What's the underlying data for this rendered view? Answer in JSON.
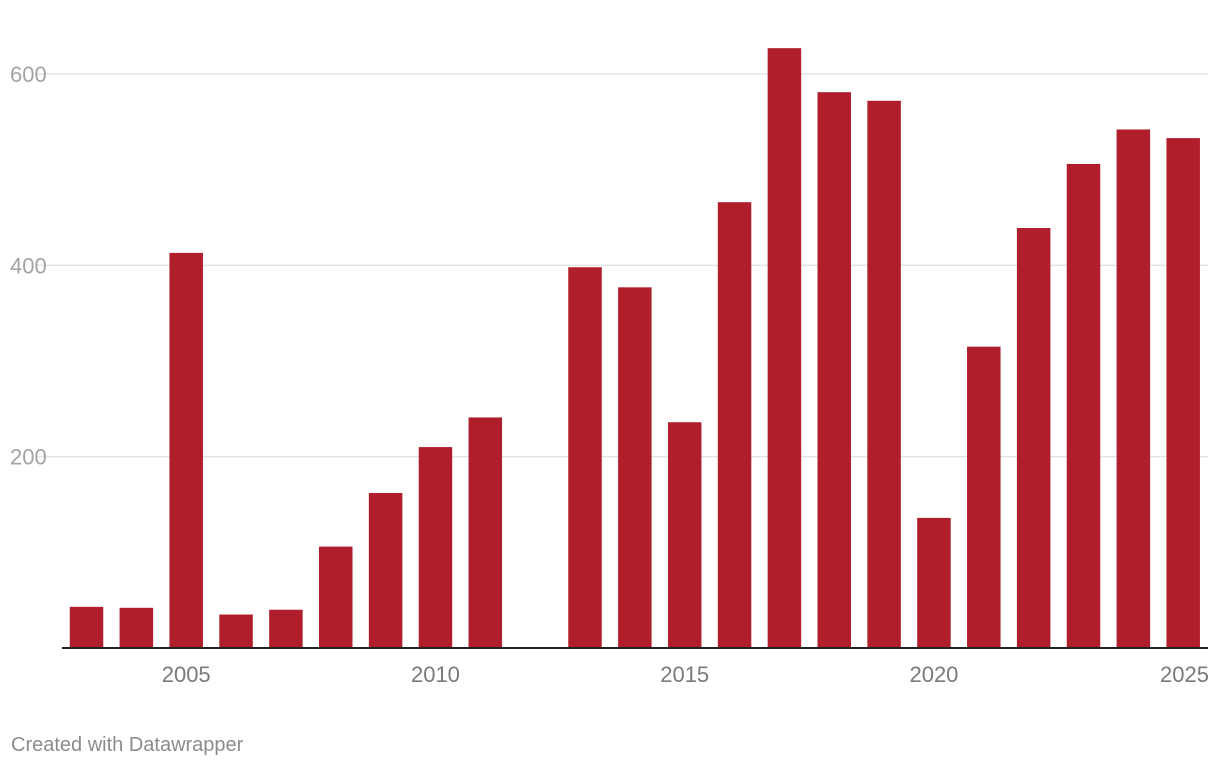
{
  "chart_data": {
    "type": "bar",
    "categories": [
      "2003",
      "2004",
      "2005",
      "2006",
      "2007",
      "2008",
      "2009",
      "2010",
      "2011",
      "2012",
      "2013",
      "2014",
      "2015",
      "2016",
      "2017",
      "2018",
      "2019",
      "2020",
      "2021",
      "2022",
      "2023",
      "2024",
      "2025"
    ],
    "values": [
      43,
      42,
      413,
      35,
      40,
      106,
      162,
      210,
      241,
      null,
      398,
      377,
      236,
      466,
      627,
      581,
      572,
      136,
      315,
      439,
      506,
      542,
      533
    ],
    "color": "#b01e2b",
    "ylim": [
      0,
      650
    ],
    "yticks": [
      200,
      400,
      600
    ],
    "xticks": [
      "2005",
      "2010",
      "2015",
      "2020",
      "2025"
    ],
    "title": "",
    "xlabel": "",
    "ylabel": "",
    "grid": true
  },
  "footer": {
    "credit": "Created with Datawrapper"
  }
}
